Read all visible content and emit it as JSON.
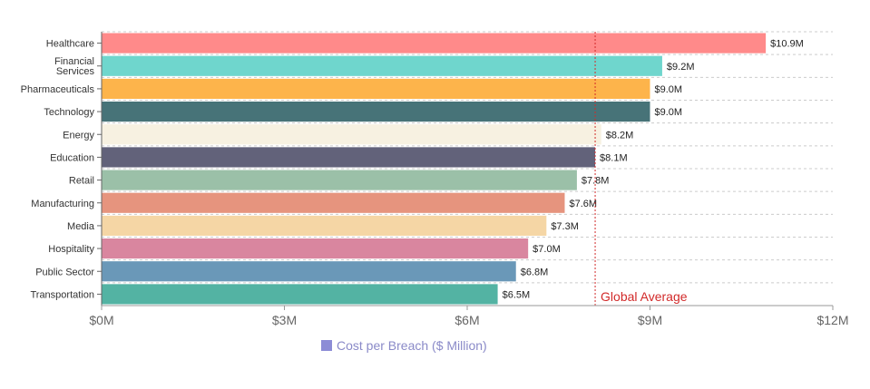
{
  "chart_data": {
    "type": "bar",
    "orientation": "horizontal",
    "categories": [
      "Healthcare",
      "Financial Services",
      "Pharmaceuticals",
      "Technology",
      "Energy",
      "Education",
      "Retail",
      "Manufacturing",
      "Media",
      "Hospitality",
      "Public Sector",
      "Transportation"
    ],
    "values": [
      10.9,
      9.2,
      9.0,
      9.0,
      8.2,
      8.1,
      7.8,
      7.6,
      7.3,
      7.0,
      6.8,
      6.5
    ],
    "value_labels": [
      "$10.9M",
      "$9.2M",
      "$9.0M",
      "$9.0M",
      "$8.2M",
      "$8.1M",
      "$7.8M",
      "$7.6M",
      "$7.3M",
      "$7.0M",
      "$6.8M",
      "$6.5M"
    ],
    "bar_colors": [
      "#ff8a8a",
      "#6fd6cd",
      "#fdb44b",
      "#477378",
      "#f7f1e1",
      "#62627a",
      "#9bc0a8",
      "#e6947e",
      "#f5d6a5",
      "#d9869f",
      "#6a98b8",
      "#53b3a3"
    ],
    "xlim": [
      0,
      12
    ],
    "xticks": [
      0,
      3,
      6,
      9,
      12
    ],
    "xtick_labels": [
      "$0M",
      "$3M",
      "$6M",
      "$9M",
      "$12M"
    ],
    "grid": "horizontal dashed",
    "reference_line": {
      "value": 8.1,
      "label": "Global Average",
      "color": "#d22a2a"
    },
    "legend": {
      "label": "Cost per Breach ($ Million)",
      "color": "#8c8cd6",
      "position": "bottom"
    },
    "title": "",
    "xlabel": "",
    "ylabel": ""
  }
}
